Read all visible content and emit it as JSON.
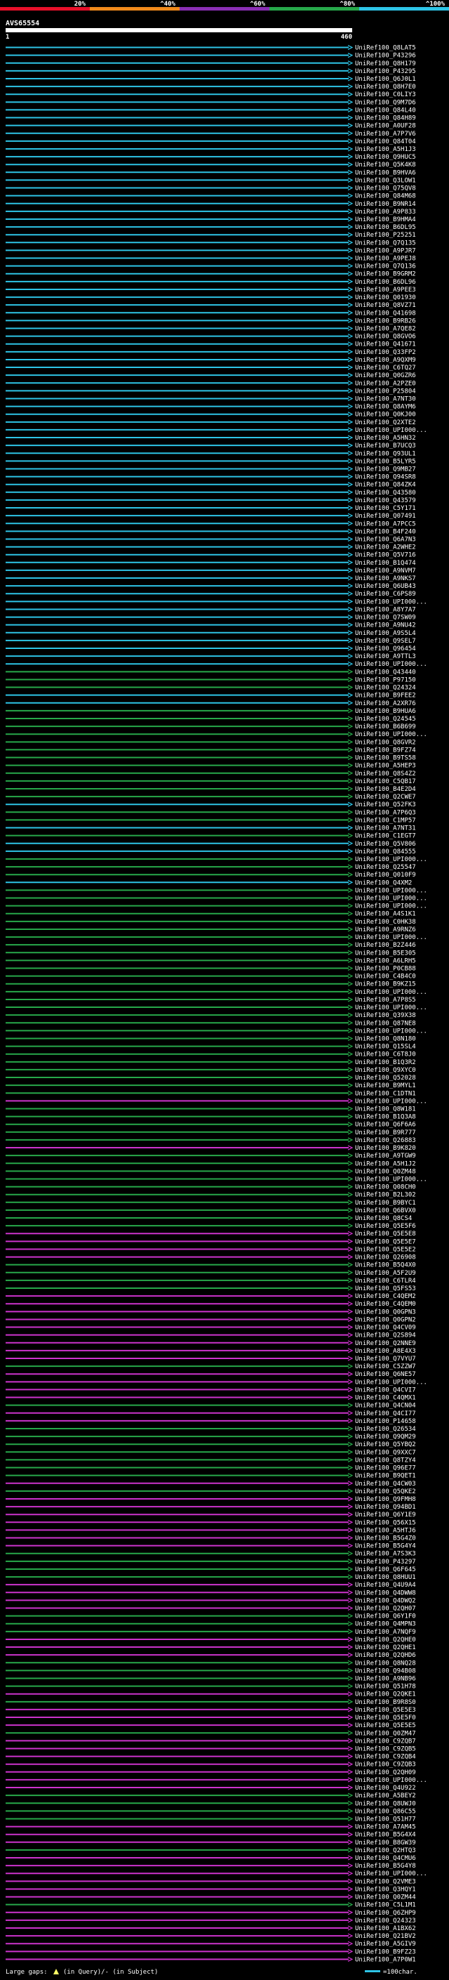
{
  "query_id": "AVS65554",
  "ruler": {
    "start": "1",
    "end": "460"
  },
  "color_legend": [
    {
      "label": "20%",
      "color": "#e8102a"
    },
    {
      "label": "^40%",
      "color": "#f08a1c"
    },
    {
      "label": "^60%",
      "color": "#8a2fb4"
    },
    {
      "label": "^80%",
      "color": "#27a84a"
    },
    {
      "label": "^100%",
      "color": "#2ec4e6"
    }
  ],
  "footer": {
    "gaps_label": "Large gaps:",
    "gaps_legend": "(in Query)/- (in Subject)",
    "scale_label": "=100char."
  },
  "chart_data": {
    "type": "alignment-overview",
    "query": "AVS65554",
    "query_length": 460,
    "title": "AVS65554",
    "color_scale": [
      "20%",
      "^40%",
      "^60%",
      "^80%",
      "^100%"
    ],
    "hits": [
      {
        "id": "UniRef100_Q8LAT5",
        "c": "cyan"
      },
      {
        "id": "UniRef100_P43296",
        "c": "cyan"
      },
      {
        "id": "UniRef100_Q8H179",
        "c": "cyan"
      },
      {
        "id": "UniRef100_P43295",
        "c": "cyan"
      },
      {
        "id": "UniRef100_Q6J0L1",
        "c": "cyan"
      },
      {
        "id": "UniRef100_Q8H7E0",
        "c": "cyan"
      },
      {
        "id": "UniRef100_C0LIY3",
        "c": "cyan"
      },
      {
        "id": "UniRef100_Q9M7D6",
        "c": "cyan"
      },
      {
        "id": "UniRef100_Q84L40",
        "c": "cyan"
      },
      {
        "id": "UniRef100_Q84H89",
        "c": "cyan"
      },
      {
        "id": "UniRef100_A0UF28",
        "c": "cyan"
      },
      {
        "id": "UniRef100_A7P7V6",
        "c": "cyan"
      },
      {
        "id": "UniRef100_Q84T04",
        "c": "cyan"
      },
      {
        "id": "UniRef100_A5H1J3",
        "c": "cyan"
      },
      {
        "id": "UniRef100_Q9HUC5",
        "c": "cyan"
      },
      {
        "id": "UniRef100_Q5K4K8",
        "c": "cyan"
      },
      {
        "id": "UniRef100_B9HVA6",
        "c": "cyan"
      },
      {
        "id": "UniRef100_Q3LOW1",
        "c": "cyan"
      },
      {
        "id": "UniRef100_Q75QV8",
        "c": "cyan"
      },
      {
        "id": "UniRef100_Q84M68",
        "c": "cyan"
      },
      {
        "id": "UniRef100_B9NR14",
        "c": "cyan"
      },
      {
        "id": "UniRef100_A9P833",
        "c": "cyan"
      },
      {
        "id": "UniRef100_B9HMA4",
        "c": "cyan"
      },
      {
        "id": "UniRef100_B6DL95",
        "c": "cyan"
      },
      {
        "id": "UniRef100_P25251",
        "c": "cyan"
      },
      {
        "id": "UniRef100_Q7Q135",
        "c": "cyan"
      },
      {
        "id": "UniRef100_A9PJR7",
        "c": "cyan"
      },
      {
        "id": "UniRef100_A9PEJ8",
        "c": "cyan"
      },
      {
        "id": "UniRef100_Q7Q136",
        "c": "cyan"
      },
      {
        "id": "UniRef100_B9GRM2",
        "c": "cyan"
      },
      {
        "id": "UniRef100_B6DL96",
        "c": "cyan"
      },
      {
        "id": "UniRef100_A9PEE3",
        "c": "cyan"
      },
      {
        "id": "UniRef100_Q01930",
        "c": "cyan"
      },
      {
        "id": "UniRef100_Q8VZ71",
        "c": "cyan"
      },
      {
        "id": "UniRef100_Q41698",
        "c": "cyan"
      },
      {
        "id": "UniRef100_B9RB26",
        "c": "cyan"
      },
      {
        "id": "UniRef100_A7QE82",
        "c": "cyan"
      },
      {
        "id": "UniRef100_Q8GVO6",
        "c": "cyan"
      },
      {
        "id": "UniRef100_Q41671",
        "c": "cyan"
      },
      {
        "id": "UniRef100_Q33FP2",
        "c": "cyan"
      },
      {
        "id": "UniRef100_A9QXM9",
        "c": "cyan"
      },
      {
        "id": "UniRef100_C6TQ27",
        "c": "cyan"
      },
      {
        "id": "UniRef100_Q0GZR6",
        "c": "cyan"
      },
      {
        "id": "UniRef100_A2PZE0",
        "c": "cyan"
      },
      {
        "id": "UniRef100_P25804",
        "c": "cyan"
      },
      {
        "id": "UniRef100_A7NT30",
        "c": "cyan"
      },
      {
        "id": "UniRef100_Q8AYM6",
        "c": "cyan"
      },
      {
        "id": "UniRef100_Q0KJ00",
        "c": "cyan"
      },
      {
        "id": "UniRef100_Q2XTE2",
        "c": "cyan"
      },
      {
        "id": "UniRef100_UPI000...",
        "c": "cyan"
      },
      {
        "id": "UniRef100_A5HN32",
        "c": "cyan"
      },
      {
        "id": "UniRef100_B7UCQ3",
        "c": "cyan"
      },
      {
        "id": "UniRef100_Q93UL1",
        "c": "cyan"
      },
      {
        "id": "UniRef100_B5LYR5",
        "c": "cyan"
      },
      {
        "id": "UniRef100_Q9MB27",
        "c": "cyan"
      },
      {
        "id": "UniRef100_Q94SR8",
        "c": "cyan"
      },
      {
        "id": "UniRef100_Q84ZK4",
        "c": "cyan"
      },
      {
        "id": "UniRef100_Q43580",
        "c": "cyan"
      },
      {
        "id": "UniRef100_Q43579",
        "c": "cyan"
      },
      {
        "id": "UniRef100_C5Y171",
        "c": "cyan"
      },
      {
        "id": "UniRef100_Q07491",
        "c": "cyan"
      },
      {
        "id": "UniRef100_A7PCC5",
        "c": "cyan"
      },
      {
        "id": "UniRef100_B4F240",
        "c": "cyan"
      },
      {
        "id": "UniRef100_Q6A7N3",
        "c": "cyan"
      },
      {
        "id": "UniRef100_A2WHE2",
        "c": "cyan"
      },
      {
        "id": "UniRef100_Q5V716",
        "c": "cyan"
      },
      {
        "id": "UniRef100_B1Q474",
        "c": "cyan"
      },
      {
        "id": "UniRef100_A9NVM7",
        "c": "cyan"
      },
      {
        "id": "UniRef100_A9NKS7",
        "c": "cyan"
      },
      {
        "id": "UniRef100_Q6UB43",
        "c": "cyan"
      },
      {
        "id": "UniRef100_C6PS89",
        "c": "cyan"
      },
      {
        "id": "UniRef100_UPI000...",
        "c": "cyan"
      },
      {
        "id": "UniRef100_A8Y7A7",
        "c": "cyan"
      },
      {
        "id": "UniRef100_Q7SW09",
        "c": "cyan"
      },
      {
        "id": "UniRef100_A9NU42",
        "c": "cyan"
      },
      {
        "id": "UniRef100_A9S5L4",
        "c": "cyan"
      },
      {
        "id": "UniRef100_Q9SEL7",
        "c": "cyan"
      },
      {
        "id": "UniRef100_Q96454",
        "c": "cyan"
      },
      {
        "id": "UniRef100_A9TTL3",
        "c": "cyan"
      },
      {
        "id": "UniRef100_UPI000...",
        "c": "cyan"
      },
      {
        "id": "UniRef100_Q43440",
        "c": "green"
      },
      {
        "id": "UniRef100_P97150",
        "c": "green"
      },
      {
        "id": "UniRef100_Q24324",
        "c": "green"
      },
      {
        "id": "UniRef100_B9FEE2",
        "c": "cyan"
      },
      {
        "id": "UniRef100_A2XR76",
        "c": "cyan"
      },
      {
        "id": "UniRef100_B9HUA6",
        "c": "green"
      },
      {
        "id": "UniRef100_Q24545",
        "c": "green"
      },
      {
        "id": "UniRef100_B6B699",
        "c": "green"
      },
      {
        "id": "UniRef100_UPI000...",
        "c": "green"
      },
      {
        "id": "UniRef100_Q8GVR2",
        "c": "green"
      },
      {
        "id": "UniRef100_B9FZ74",
        "c": "green"
      },
      {
        "id": "UniRef100_B9TS58",
        "c": "green"
      },
      {
        "id": "UniRef100_A5HEP3",
        "c": "green"
      },
      {
        "id": "UniRef100_Q8S4Z2",
        "c": "green"
      },
      {
        "id": "UniRef100_C5QB17",
        "c": "green"
      },
      {
        "id": "UniRef100_B4E2D4",
        "c": "green"
      },
      {
        "id": "UniRef100_Q2CWE7",
        "c": "green"
      },
      {
        "id": "UniRef100_Q52FK3",
        "c": "cyan"
      },
      {
        "id": "UniRef100_A7P6Q3",
        "c": "green"
      },
      {
        "id": "UniRef100_C1MP57",
        "c": "green"
      },
      {
        "id": "UniRef100_A7NT31",
        "c": "cyan"
      },
      {
        "id": "UniRef100_C1EGT7",
        "c": "green"
      },
      {
        "id": "UniRef100_Q5V806",
        "c": "cyan"
      },
      {
        "id": "UniRef100_Q84555",
        "c": "cyan"
      },
      {
        "id": "UniRef100_UPI000...",
        "c": "green"
      },
      {
        "id": "UniRef100_Q25547",
        "c": "green"
      },
      {
        "id": "UniRef100_Q010F9",
        "c": "green"
      },
      {
        "id": "UniRef100_Q4XM2",
        "c": "cyan"
      },
      {
        "id": "UniRef100_UPI000...",
        "c": "green"
      },
      {
        "id": "UniRef100_UPI000...",
        "c": "green"
      },
      {
        "id": "UniRef100_UPI000...",
        "c": "green"
      },
      {
        "id": "UniRef100_A4S1K1",
        "c": "green"
      },
      {
        "id": "UniRef100_C0HK38",
        "c": "green"
      },
      {
        "id": "UniRef100_A9RNZ6",
        "c": "green"
      },
      {
        "id": "UniRef100_UPI000...",
        "c": "green"
      },
      {
        "id": "UniRef100_B2Z446",
        "c": "green"
      },
      {
        "id": "UniRef100_B5E305",
        "c": "green"
      },
      {
        "id": "UniRef100_A6LRH5",
        "c": "green"
      },
      {
        "id": "UniRef100_P0CB88",
        "c": "green"
      },
      {
        "id": "UniRef100_C4B4C0",
        "c": "green"
      },
      {
        "id": "UniRef100_B9KZ15",
        "c": "green"
      },
      {
        "id": "UniRef100_UPI000...",
        "c": "green"
      },
      {
        "id": "UniRef100_A7P8S5",
        "c": "green"
      },
      {
        "id": "UniRef100_UPI000...",
        "c": "green"
      },
      {
        "id": "UniRef100_Q39X38",
        "c": "green"
      },
      {
        "id": "UniRef100_Q87NE8",
        "c": "green"
      },
      {
        "id": "UniRef100_UPI000...",
        "c": "green"
      },
      {
        "id": "UniRef100_Q8N180",
        "c": "green"
      },
      {
        "id": "UniRef100_Q15SL4",
        "c": "green"
      },
      {
        "id": "UniRef100_C6T8J0",
        "c": "green"
      },
      {
        "id": "UniRef100_B1Q3R2",
        "c": "green"
      },
      {
        "id": "UniRef100_Q9XYC0",
        "c": "green"
      },
      {
        "id": "UniRef100_Q52028",
        "c": "green"
      },
      {
        "id": "UniRef100_B9MYL1",
        "c": "green"
      },
      {
        "id": "UniRef100_C1DTN1",
        "c": "green"
      },
      {
        "id": "UniRef100_UPI000...",
        "c": "magenta"
      },
      {
        "id": "UniRef100_Q8W181",
        "c": "green"
      },
      {
        "id": "UniRef100_B1Q3A8",
        "c": "green"
      },
      {
        "id": "UniRef100_Q6F6A6",
        "c": "green"
      },
      {
        "id": "UniRef100_B9R777",
        "c": "green"
      },
      {
        "id": "UniRef100_Q26883",
        "c": "green"
      },
      {
        "id": "UniRef100_B9K820",
        "c": "magenta"
      },
      {
        "id": "UniRef100_A9TGW9",
        "c": "green"
      },
      {
        "id": "UniRef100_A5H1J2",
        "c": "green"
      },
      {
        "id": "UniRef100_Q0ZM48",
        "c": "green"
      },
      {
        "id": "UniRef100_UPI000...",
        "c": "green"
      },
      {
        "id": "UniRef100_Q08CH0",
        "c": "green"
      },
      {
        "id": "UniRef100_B2L302",
        "c": "green"
      },
      {
        "id": "UniRef100_B9BYC1",
        "c": "green"
      },
      {
        "id": "UniRef100_Q6BVX0",
        "c": "green"
      },
      {
        "id": "UniRef100_Q8CS4",
        "c": "green"
      },
      {
        "id": "UniRef100_Q5E5F6",
        "c": "green"
      },
      {
        "id": "UniRef100_Q5E5E8",
        "c": "magenta"
      },
      {
        "id": "UniRef100_Q5E5E7",
        "c": "magenta"
      },
      {
        "id": "UniRef100_Q5E5E2",
        "c": "magenta"
      },
      {
        "id": "UniRef100_Q26908",
        "c": "magenta"
      },
      {
        "id": "UniRef100_B5Q4X0",
        "c": "green"
      },
      {
        "id": "UniRef100_A5F2U9",
        "c": "green"
      },
      {
        "id": "UniRef100_C6TLR4",
        "c": "green"
      },
      {
        "id": "UniRef100_Q5FS53",
        "c": "green"
      },
      {
        "id": "UniRef100_C4QEM2",
        "c": "magenta"
      },
      {
        "id": "UniRef100_C4QEM0",
        "c": "magenta"
      },
      {
        "id": "UniRef100_Q0GPN3",
        "c": "magenta"
      },
      {
        "id": "UniRef100_Q0GPN2",
        "c": "magenta"
      },
      {
        "id": "UniRef100_Q4CV09",
        "c": "magenta"
      },
      {
        "id": "UniRef100_Q2S894",
        "c": "magenta"
      },
      {
        "id": "UniRef100_Q2NNE9",
        "c": "magenta"
      },
      {
        "id": "UniRef100_A8E4X3",
        "c": "magenta"
      },
      {
        "id": "UniRef100_Q7VYU7",
        "c": "magenta"
      },
      {
        "id": "UniRef100_C5ZZW7",
        "c": "green"
      },
      {
        "id": "UniRef100_Q6NE57",
        "c": "magenta"
      },
      {
        "id": "UniRef100_UPI000...",
        "c": "magenta"
      },
      {
        "id": "UniRef100_Q4CVI7",
        "c": "magenta"
      },
      {
        "id": "UniRef100_C4QMX1",
        "c": "magenta"
      },
      {
        "id": "UniRef100_Q4CN04",
        "c": "green"
      },
      {
        "id": "UniRef100_Q4CI77",
        "c": "magenta"
      },
      {
        "id": "UniRef100_P14658",
        "c": "magenta"
      },
      {
        "id": "UniRef100_Q26534",
        "c": "green"
      },
      {
        "id": "UniRef100_Q9QM29",
        "c": "green"
      },
      {
        "id": "UniRef100_Q5YBQ2",
        "c": "green"
      },
      {
        "id": "UniRef100_Q9XXC7",
        "c": "green"
      },
      {
        "id": "UniRef100_Q8TZY4",
        "c": "green"
      },
      {
        "id": "UniRef100_Q96E77",
        "c": "green"
      },
      {
        "id": "UniRef100_B9QET1",
        "c": "green"
      },
      {
        "id": "UniRef100_Q4CW03",
        "c": "magenta"
      },
      {
        "id": "UniRef100_Q5QKE2",
        "c": "green"
      },
      {
        "id": "UniRef100_Q9FMH8",
        "c": "magenta"
      },
      {
        "id": "UniRef100_Q94BD1",
        "c": "magenta"
      },
      {
        "id": "UniRef100_Q6Y1E9",
        "c": "magenta"
      },
      {
        "id": "UniRef100_Q56X15",
        "c": "magenta"
      },
      {
        "id": "UniRef100_A5HTJ6",
        "c": "magenta"
      },
      {
        "id": "UniRef100_B5G4Z0",
        "c": "magenta"
      },
      {
        "id": "UniRef100_B5G4Y4",
        "c": "magenta"
      },
      {
        "id": "UniRef100_A7S3K3",
        "c": "green"
      },
      {
        "id": "UniRef100_P43297",
        "c": "green"
      },
      {
        "id": "UniRef100_Q6F645",
        "c": "green"
      },
      {
        "id": "UniRef100_Q8HUU1",
        "c": "green"
      },
      {
        "id": "UniRef100_Q4U9A4",
        "c": "magenta"
      },
      {
        "id": "UniRef100_Q4DWW8",
        "c": "magenta"
      },
      {
        "id": "UniRef100_Q4DWQ2",
        "c": "magenta"
      },
      {
        "id": "UniRef100_Q2QH07",
        "c": "magenta"
      },
      {
        "id": "UniRef100_Q6Y1F0",
        "c": "green"
      },
      {
        "id": "UniRef100_Q4MPN3",
        "c": "green"
      },
      {
        "id": "UniRef100_A7NQF9",
        "c": "green"
      },
      {
        "id": "UniRef100_Q2QHE0",
        "c": "magenta"
      },
      {
        "id": "UniRef100_Q2QHE1",
        "c": "magenta"
      },
      {
        "id": "UniRef100_Q2QHD6",
        "c": "magenta"
      },
      {
        "id": "UniRef100_Q8NQ28",
        "c": "green"
      },
      {
        "id": "UniRef100_Q94B08",
        "c": "green"
      },
      {
        "id": "UniRef100_A9NB96",
        "c": "green"
      },
      {
        "id": "UniRef100_Q51H78",
        "c": "green"
      },
      {
        "id": "UniRef100_Q2QKE1",
        "c": "magenta"
      },
      {
        "id": "UniRef100_B9R8S0",
        "c": "green"
      },
      {
        "id": "UniRef100_Q5E5E3",
        "c": "magenta"
      },
      {
        "id": "UniRef100_Q5E5F0",
        "c": "magenta"
      },
      {
        "id": "UniRef100_Q5E5E5",
        "c": "magenta"
      },
      {
        "id": "UniRef100_Q0ZM47",
        "c": "green"
      },
      {
        "id": "UniRef100_C9ZQB7",
        "c": "magenta"
      },
      {
        "id": "UniRef100_C9ZQB5",
        "c": "magenta"
      },
      {
        "id": "UniRef100_C9ZQB4",
        "c": "magenta"
      },
      {
        "id": "UniRef100_C9ZQB3",
        "c": "magenta"
      },
      {
        "id": "UniRef100_Q2QH09",
        "c": "magenta"
      },
      {
        "id": "UniRef100_UPI000...",
        "c": "magenta"
      },
      {
        "id": "UniRef100_Q4U922",
        "c": "magenta"
      },
      {
        "id": "UniRef100_A5BEY2",
        "c": "green"
      },
      {
        "id": "UniRef100_Q8UWJ0",
        "c": "green"
      },
      {
        "id": "UniRef100_Q86C55",
        "c": "green"
      },
      {
        "id": "UniRef100_Q51H77",
        "c": "green"
      },
      {
        "id": "UniRef100_A7AM45",
        "c": "magenta"
      },
      {
        "id": "UniRef100_B5G4X4",
        "c": "magenta"
      },
      {
        "id": "UniRef100_B8GW39",
        "c": "magenta"
      },
      {
        "id": "UniRef100_Q2HTQ3",
        "c": "green"
      },
      {
        "id": "UniRef100_Q4CMU6",
        "c": "magenta"
      },
      {
        "id": "UniRef100_B5G4Y8",
        "c": "magenta"
      },
      {
        "id": "UniRef100_UPI000...",
        "c": "magenta"
      },
      {
        "id": "UniRef100_Q2VME3",
        "c": "magenta"
      },
      {
        "id": "UniRef100_Q3HQY1",
        "c": "magenta"
      },
      {
        "id": "UniRef100_Q0ZM44",
        "c": "magenta"
      },
      {
        "id": "UniRef100_C5L1M1",
        "c": "green"
      },
      {
        "id": "UniRef100_Q6ZHP9",
        "c": "magenta"
      },
      {
        "id": "UniRef100_Q24323",
        "c": "magenta"
      },
      {
        "id": "UniRef100_A1BX62",
        "c": "magenta"
      },
      {
        "id": "UniRef100_Q21BV2",
        "c": "magenta"
      },
      {
        "id": "UniRef100_A5GIV9",
        "c": "magenta"
      },
      {
        "id": "UniRef100_B9FZ23",
        "c": "magenta"
      },
      {
        "id": "UniRef100_A7P0W1",
        "c": "magenta"
      }
    ]
  }
}
